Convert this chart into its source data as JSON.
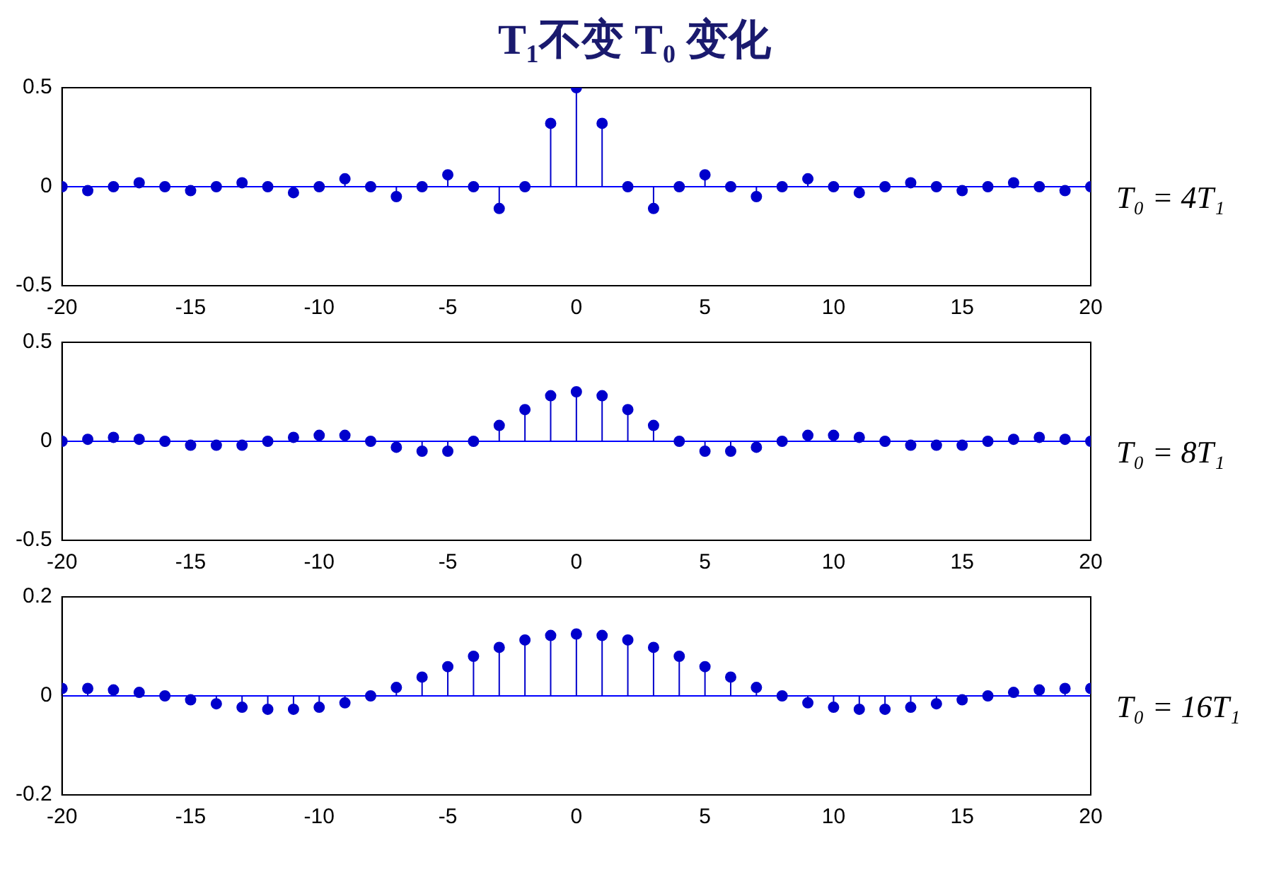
{
  "chart_data": [
    {
      "type": "lollipop",
      "title": "T₁不变  T₀ 变化",
      "annotations": [
        "T₀ = 4T₁"
      ],
      "color": "#0000cc",
      "marker": "circle",
      "grid": false,
      "ref_lines": [
        {
          "axis": "y",
          "value": 0,
          "color": "#0000ff"
        }
      ],
      "x": [
        -20,
        -19,
        -18,
        -17,
        -16,
        -15,
        -14,
        -13,
        -12,
        -11,
        -10,
        -9,
        -8,
        -7,
        -6,
        -5,
        -4,
        -3,
        -2,
        -1,
        0,
        1,
        2,
        3,
        4,
        5,
        6,
        7,
        8,
        9,
        10,
        11,
        12,
        13,
        14,
        15,
        16,
        17,
        18,
        19,
        20
      ],
      "values": [
        0,
        -0.02,
        0,
        0.02,
        0,
        -0.02,
        0,
        0.02,
        0,
        -0.03,
        0,
        0.04,
        0,
        -0.05,
        0,
        0.06,
        0,
        -0.11,
        0,
        0.32,
        0.5,
        0.32,
        0,
        -0.11,
        0,
        0.06,
        0,
        -0.05,
        0,
        0.04,
        0,
        -0.03,
        0,
        0.02,
        0,
        -0.02,
        0,
        0.02,
        0,
        -0.02,
        0
      ],
      "xlim": [
        -20,
        20
      ],
      "xticks": [
        -20,
        -15,
        -10,
        -5,
        0,
        5,
        10,
        15,
        20
      ],
      "ylim": [
        -0.5,
        0.5
      ],
      "yticks": [
        -0.5,
        0,
        0.5
      ]
    },
    {
      "type": "lollipop",
      "annotations": [
        "T₀ = 8T₁"
      ],
      "color": "#0000cc",
      "marker": "circle",
      "grid": false,
      "ref_lines": [
        {
          "axis": "y",
          "value": 0,
          "color": "#0000ff"
        }
      ],
      "x": [
        -20,
        -19,
        -18,
        -17,
        -16,
        -15,
        -14,
        -13,
        -12,
        -11,
        -10,
        -9,
        -8,
        -7,
        -6,
        -5,
        -4,
        -3,
        -2,
        -1,
        0,
        1,
        2,
        3,
        4,
        5,
        6,
        7,
        8,
        9,
        10,
        11,
        12,
        13,
        14,
        15,
        16,
        17,
        18,
        19,
        20
      ],
      "values": [
        0,
        0.01,
        0.02,
        0.01,
        0,
        -0.02,
        -0.02,
        -0.02,
        0,
        0.02,
        0.03,
        0.03,
        0,
        -0.03,
        -0.05,
        -0.05,
        0,
        0.08,
        0.16,
        0.23,
        0.25,
        0.23,
        0.16,
        0.08,
        0,
        -0.05,
        -0.05,
        -0.03,
        0,
        0.03,
        0.03,
        0.02,
        0,
        -0.02,
        -0.02,
        -0.02,
        0,
        0.01,
        0.02,
        0.01,
        0
      ],
      "xlim": [
        -20,
        20
      ],
      "xticks": [
        -20,
        -15,
        -10,
        -5,
        0,
        5,
        10,
        15,
        20
      ],
      "ylim": [
        -0.5,
        0.5
      ],
      "yticks": [
        -0.5,
        0,
        0.5
      ]
    },
    {
      "type": "lollipop",
      "annotations": [
        "T₀ = 16T₁"
      ],
      "color": "#0000cc",
      "marker": "circle",
      "grid": false,
      "ref_lines": [
        {
          "axis": "y",
          "value": 0,
          "color": "#0000ff"
        }
      ],
      "x": [
        -20,
        -19,
        -18,
        -17,
        -16,
        -15,
        -14,
        -13,
        -12,
        -11,
        -10,
        -9,
        -8,
        -7,
        -6,
        -5,
        -4,
        -3,
        -2,
        -1,
        0,
        1,
        2,
        3,
        4,
        5,
        6,
        7,
        8,
        9,
        10,
        11,
        12,
        13,
        14,
        15,
        16,
        17,
        18,
        19,
        20
      ],
      "values": [
        0.015,
        0.015,
        0.012,
        0.007,
        0,
        -0.008,
        -0.016,
        -0.023,
        -0.027,
        -0.027,
        -0.023,
        -0.014,
        0,
        0.017,
        0.038,
        0.059,
        0.08,
        0.098,
        0.113,
        0.122,
        0.125,
        0.122,
        0.113,
        0.098,
        0.08,
        0.059,
        0.038,
        0.017,
        0,
        -0.014,
        -0.023,
        -0.027,
        -0.027,
        -0.023,
        -0.016,
        -0.008,
        0,
        0.007,
        0.012,
        0.015,
        0.015
      ],
      "xlim": [
        -20,
        20
      ],
      "xticks": [
        -20,
        -15,
        -10,
        -5,
        0,
        5,
        10,
        15,
        20
      ],
      "ylim": [
        -0.2,
        0.2
      ],
      "yticks": [
        -0.2,
        0,
        0.2
      ]
    }
  ]
}
